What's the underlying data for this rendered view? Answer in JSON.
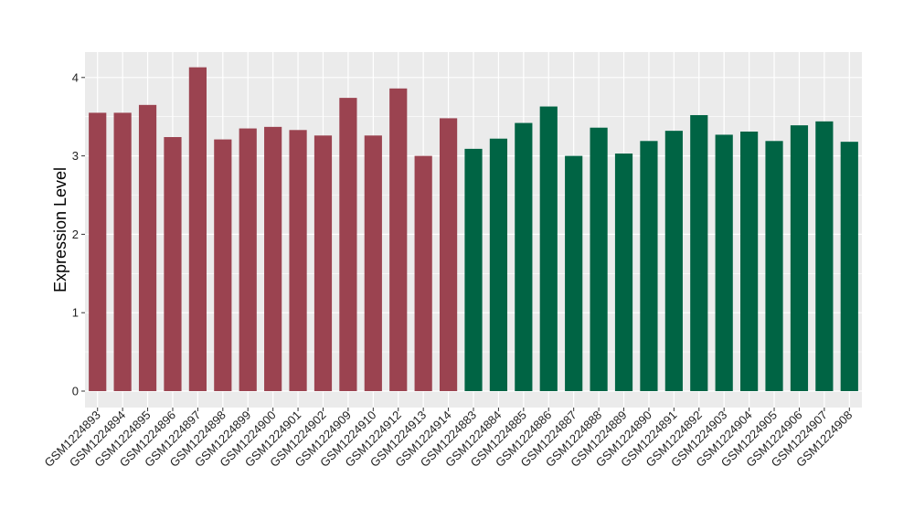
{
  "chart_data": {
    "type": "bar",
    "title": "",
    "xlabel": "",
    "ylabel": "Expression Level",
    "ylim": [
      0,
      4.25
    ],
    "yticks": [
      0,
      1,
      2,
      3,
      4
    ],
    "grid": true,
    "legend": "none",
    "background": "#EBEBEB",
    "categories": [
      "GSM1224893",
      "GSM1224894",
      "GSM1224895",
      "GSM1224896",
      "GSM1224897",
      "GSM1224898",
      "GSM1224899",
      "GSM1224900",
      "GSM1224901",
      "GSM1224902",
      "GSM1224909",
      "GSM1224910",
      "GSM1224912",
      "GSM1224913",
      "GSM1224914",
      "GSM1224883",
      "GSM1224884",
      "GSM1224885",
      "GSM1224886",
      "GSM1224887",
      "GSM1224888",
      "GSM1224889",
      "GSM1224890",
      "GSM1224891",
      "GSM1224892",
      "GSM1224903",
      "GSM1224904",
      "GSM1224905",
      "GSM1224906",
      "GSM1224907",
      "GSM1224908"
    ],
    "values": [
      3.55,
      3.55,
      3.65,
      3.24,
      4.13,
      3.21,
      3.35,
      3.37,
      3.33,
      3.26,
      3.74,
      3.26,
      3.86,
      3.0,
      3.48,
      3.09,
      3.22,
      3.42,
      3.63,
      3.0,
      3.36,
      3.03,
      3.19,
      3.32,
      3.52,
      3.27,
      3.31,
      3.19,
      3.39,
      3.44,
      3.18
    ],
    "colors": [
      "#9B4350",
      "#9B4350",
      "#9B4350",
      "#9B4350",
      "#9B4350",
      "#9B4350",
      "#9B4350",
      "#9B4350",
      "#9B4350",
      "#9B4350",
      "#9B4350",
      "#9B4350",
      "#9B4350",
      "#9B4350",
      "#9B4350",
      "#006444",
      "#006444",
      "#006444",
      "#006444",
      "#006444",
      "#006444",
      "#006444",
      "#006444",
      "#006444",
      "#006444",
      "#006444",
      "#006444",
      "#006444",
      "#006444",
      "#006444",
      "#006444"
    ]
  }
}
